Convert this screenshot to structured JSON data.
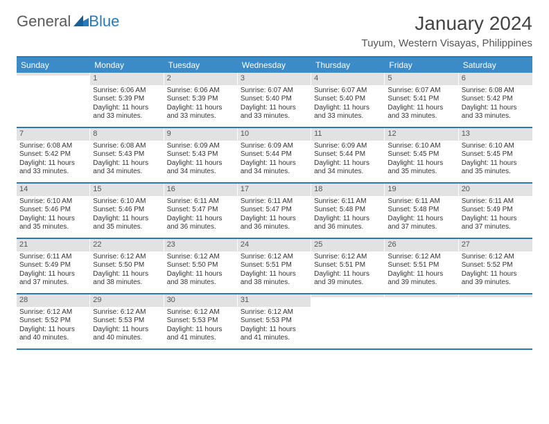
{
  "brand": {
    "part1": "General",
    "part2": "Blue"
  },
  "title": "January 2024",
  "location": "Tuyum, Western Visayas, Philippines",
  "colors": {
    "accent": "#2a7ab8",
    "header_bg": "#3b8bc8",
    "daynum_bg": "#e2e2e2",
    "text": "#333333",
    "background": "#ffffff"
  },
  "day_headers": [
    "Sunday",
    "Monday",
    "Tuesday",
    "Wednesday",
    "Thursday",
    "Friday",
    "Saturday"
  ],
  "weeks": [
    [
      {
        "n": "",
        "sr": "",
        "ss": "",
        "dl": ""
      },
      {
        "n": "1",
        "sr": "Sunrise: 6:06 AM",
        "ss": "Sunset: 5:39 PM",
        "dl": "Daylight: 11 hours and 33 minutes."
      },
      {
        "n": "2",
        "sr": "Sunrise: 6:06 AM",
        "ss": "Sunset: 5:39 PM",
        "dl": "Daylight: 11 hours and 33 minutes."
      },
      {
        "n": "3",
        "sr": "Sunrise: 6:07 AM",
        "ss": "Sunset: 5:40 PM",
        "dl": "Daylight: 11 hours and 33 minutes."
      },
      {
        "n": "4",
        "sr": "Sunrise: 6:07 AM",
        "ss": "Sunset: 5:40 PM",
        "dl": "Daylight: 11 hours and 33 minutes."
      },
      {
        "n": "5",
        "sr": "Sunrise: 6:07 AM",
        "ss": "Sunset: 5:41 PM",
        "dl": "Daylight: 11 hours and 33 minutes."
      },
      {
        "n": "6",
        "sr": "Sunrise: 6:08 AM",
        "ss": "Sunset: 5:42 PM",
        "dl": "Daylight: 11 hours and 33 minutes."
      }
    ],
    [
      {
        "n": "7",
        "sr": "Sunrise: 6:08 AM",
        "ss": "Sunset: 5:42 PM",
        "dl": "Daylight: 11 hours and 33 minutes."
      },
      {
        "n": "8",
        "sr": "Sunrise: 6:08 AM",
        "ss": "Sunset: 5:43 PM",
        "dl": "Daylight: 11 hours and 34 minutes."
      },
      {
        "n": "9",
        "sr": "Sunrise: 6:09 AM",
        "ss": "Sunset: 5:43 PM",
        "dl": "Daylight: 11 hours and 34 minutes."
      },
      {
        "n": "10",
        "sr": "Sunrise: 6:09 AM",
        "ss": "Sunset: 5:44 PM",
        "dl": "Daylight: 11 hours and 34 minutes."
      },
      {
        "n": "11",
        "sr": "Sunrise: 6:09 AM",
        "ss": "Sunset: 5:44 PM",
        "dl": "Daylight: 11 hours and 34 minutes."
      },
      {
        "n": "12",
        "sr": "Sunrise: 6:10 AM",
        "ss": "Sunset: 5:45 PM",
        "dl": "Daylight: 11 hours and 35 minutes."
      },
      {
        "n": "13",
        "sr": "Sunrise: 6:10 AM",
        "ss": "Sunset: 5:45 PM",
        "dl": "Daylight: 11 hours and 35 minutes."
      }
    ],
    [
      {
        "n": "14",
        "sr": "Sunrise: 6:10 AM",
        "ss": "Sunset: 5:46 PM",
        "dl": "Daylight: 11 hours and 35 minutes."
      },
      {
        "n": "15",
        "sr": "Sunrise: 6:10 AM",
        "ss": "Sunset: 5:46 PM",
        "dl": "Daylight: 11 hours and 35 minutes."
      },
      {
        "n": "16",
        "sr": "Sunrise: 6:11 AM",
        "ss": "Sunset: 5:47 PM",
        "dl": "Daylight: 11 hours and 36 minutes."
      },
      {
        "n": "17",
        "sr": "Sunrise: 6:11 AM",
        "ss": "Sunset: 5:47 PM",
        "dl": "Daylight: 11 hours and 36 minutes."
      },
      {
        "n": "18",
        "sr": "Sunrise: 6:11 AM",
        "ss": "Sunset: 5:48 PM",
        "dl": "Daylight: 11 hours and 36 minutes."
      },
      {
        "n": "19",
        "sr": "Sunrise: 6:11 AM",
        "ss": "Sunset: 5:48 PM",
        "dl": "Daylight: 11 hours and 37 minutes."
      },
      {
        "n": "20",
        "sr": "Sunrise: 6:11 AM",
        "ss": "Sunset: 5:49 PM",
        "dl": "Daylight: 11 hours and 37 minutes."
      }
    ],
    [
      {
        "n": "21",
        "sr": "Sunrise: 6:11 AM",
        "ss": "Sunset: 5:49 PM",
        "dl": "Daylight: 11 hours and 37 minutes."
      },
      {
        "n": "22",
        "sr": "Sunrise: 6:12 AM",
        "ss": "Sunset: 5:50 PM",
        "dl": "Daylight: 11 hours and 38 minutes."
      },
      {
        "n": "23",
        "sr": "Sunrise: 6:12 AM",
        "ss": "Sunset: 5:50 PM",
        "dl": "Daylight: 11 hours and 38 minutes."
      },
      {
        "n": "24",
        "sr": "Sunrise: 6:12 AM",
        "ss": "Sunset: 5:51 PM",
        "dl": "Daylight: 11 hours and 38 minutes."
      },
      {
        "n": "25",
        "sr": "Sunrise: 6:12 AM",
        "ss": "Sunset: 5:51 PM",
        "dl": "Daylight: 11 hours and 39 minutes."
      },
      {
        "n": "26",
        "sr": "Sunrise: 6:12 AM",
        "ss": "Sunset: 5:51 PM",
        "dl": "Daylight: 11 hours and 39 minutes."
      },
      {
        "n": "27",
        "sr": "Sunrise: 6:12 AM",
        "ss": "Sunset: 5:52 PM",
        "dl": "Daylight: 11 hours and 39 minutes."
      }
    ],
    [
      {
        "n": "28",
        "sr": "Sunrise: 6:12 AM",
        "ss": "Sunset: 5:52 PM",
        "dl": "Daylight: 11 hours and 40 minutes."
      },
      {
        "n": "29",
        "sr": "Sunrise: 6:12 AM",
        "ss": "Sunset: 5:53 PM",
        "dl": "Daylight: 11 hours and 40 minutes."
      },
      {
        "n": "30",
        "sr": "Sunrise: 6:12 AM",
        "ss": "Sunset: 5:53 PM",
        "dl": "Daylight: 11 hours and 41 minutes."
      },
      {
        "n": "31",
        "sr": "Sunrise: 6:12 AM",
        "ss": "Sunset: 5:53 PM",
        "dl": "Daylight: 11 hours and 41 minutes."
      },
      {
        "n": "",
        "sr": "",
        "ss": "",
        "dl": ""
      },
      {
        "n": "",
        "sr": "",
        "ss": "",
        "dl": ""
      },
      {
        "n": "",
        "sr": "",
        "ss": "",
        "dl": ""
      }
    ]
  ]
}
